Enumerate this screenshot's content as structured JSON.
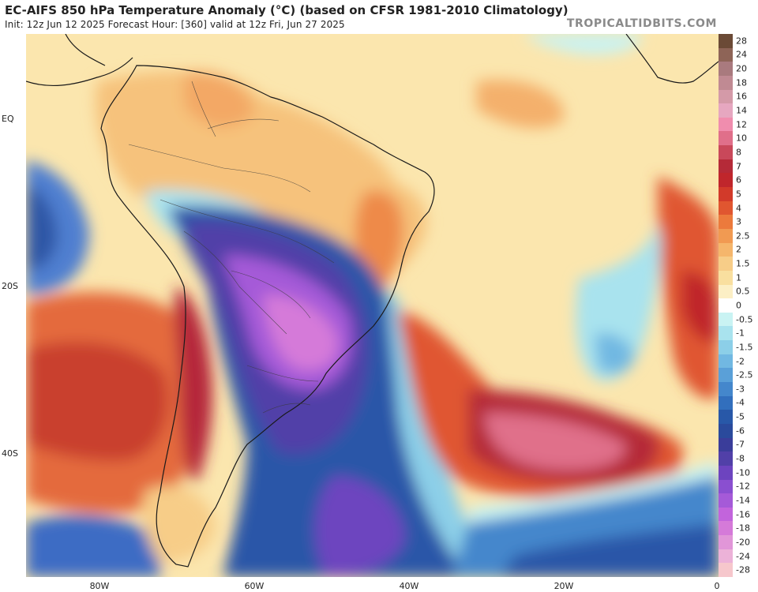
{
  "header": {
    "title": "EC-AIFS 850 hPa Temperature Anomaly (°C) (based on CFSR 1981-2010 Climatology)",
    "subtitle": "Init: 12z Jun 12 2025   Forecast Hour: [360]   valid at 12z Fri, Jun 27 2025",
    "brand": "TROPICALTIDBITS.COM"
  },
  "axes": {
    "lat_labels": [
      "EQ",
      "20S",
      "40S"
    ],
    "lon_labels": [
      "80W",
      "60W",
      "40W",
      "20W",
      "0"
    ]
  },
  "colorbar": {
    "labels": [
      "28",
      "24",
      "20",
      "18",
      "16",
      "14",
      "12",
      "10",
      "8",
      "7",
      "6",
      "5",
      "4",
      "3",
      "2.5",
      "2",
      "1.5",
      "1",
      "0.5",
      "0",
      "-0.5",
      "-1",
      "-1.5",
      "-2",
      "-2.5",
      "-3",
      "-4",
      "-5",
      "-6",
      "-7",
      "-8",
      "-10",
      "-12",
      "-14",
      "-16",
      "-18",
      "-20",
      "-24",
      "-28"
    ],
    "colors": [
      "#6b4a36",
      "#8e6457",
      "#a97a7e",
      "#c08a93",
      "#d49aa8",
      "#e6a7c0",
      "#f08dae",
      "#e06f8a",
      "#c9485a",
      "#b52a38",
      "#c0262c",
      "#d23a2a",
      "#e05630",
      "#ec7a3c",
      "#f19a52",
      "#f5b66c",
      "#f7cd88",
      "#f9df9f",
      "#fcefc5",
      "#ffffff",
      "#c9f3f3",
      "#a9e3ee",
      "#8ccfe8",
      "#71b8e2",
      "#5aa0d8",
      "#4487cc",
      "#326fbd",
      "#2858a8",
      "#2a4a9c",
      "#3a3d9a",
      "#5140a8",
      "#6d44bf",
      "#8a4fd0",
      "#a55ad8",
      "#c264dc",
      "#d57ad9",
      "#e196d8",
      "#ecb2d8",
      "#f6c7cc"
    ]
  },
  "map": {
    "description_layers": [
      "anomaly-field",
      "coastlines",
      "borders"
    ]
  }
}
